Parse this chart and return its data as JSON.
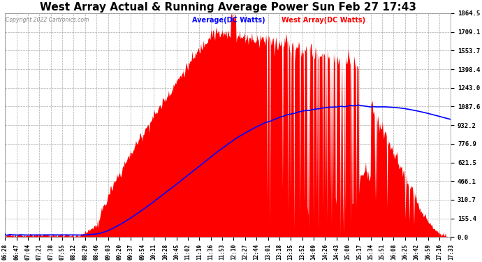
{
  "title": "West Array Actual & Running Average Power Sun Feb 27 17:43",
  "copyright": "Copyright 2022 Cartronics.com",
  "legend_average": "Average(DC Watts)",
  "legend_west": "West Array(DC Watts)",
  "ymin": 0.0,
  "ymax": 1864.5,
  "yticks": [
    0.0,
    155.4,
    310.7,
    466.1,
    621.5,
    776.9,
    932.2,
    1087.6,
    1243.0,
    1398.4,
    1553.7,
    1709.1,
    1864.5
  ],
  "xtick_labels": [
    "06:28",
    "06:47",
    "07:04",
    "07:21",
    "07:38",
    "07:55",
    "08:12",
    "08:29",
    "08:46",
    "09:03",
    "09:20",
    "09:37",
    "09:54",
    "10:11",
    "10:28",
    "10:45",
    "11:02",
    "11:19",
    "11:36",
    "11:53",
    "12:10",
    "12:27",
    "12:44",
    "13:01",
    "13:18",
    "13:35",
    "13:52",
    "14:09",
    "14:26",
    "14:43",
    "15:00",
    "15:17",
    "15:34",
    "15:51",
    "16:08",
    "16:25",
    "16:42",
    "16:59",
    "17:16",
    "17:33"
  ],
  "bar_color": "#ff0000",
  "line_color": "#0000ff",
  "grid_color": "#aaaaaa",
  "background_color": "#ffffff",
  "title_color": "#000000",
  "title_fontsize": 11,
  "label_color_avg": "#0000ff",
  "label_color_west": "#ff0000",
  "figwidth": 6.9,
  "figheight": 3.75,
  "dpi": 100
}
